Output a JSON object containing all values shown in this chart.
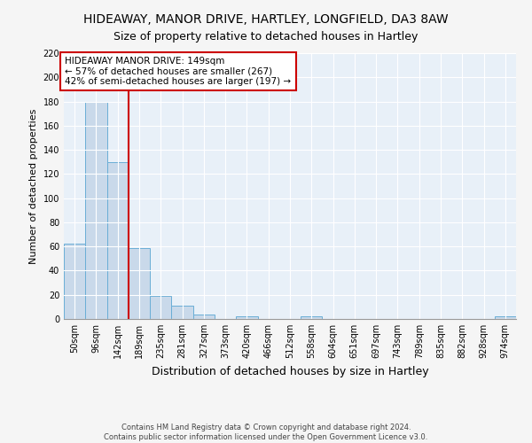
{
  "title": "HIDEAWAY, MANOR DRIVE, HARTLEY, LONGFIELD, DA3 8AW",
  "subtitle": "Size of property relative to detached houses in Hartley",
  "xlabel": "Distribution of detached houses by size in Hartley",
  "ylabel": "Number of detached properties",
  "footer_line1": "Contains HM Land Registry data © Crown copyright and database right 2024.",
  "footer_line2": "Contains public sector information licensed under the Open Government Licence v3.0.",
  "bin_labels": [
    "50sqm",
    "96sqm",
    "142sqm",
    "189sqm",
    "235sqm",
    "281sqm",
    "327sqm",
    "373sqm",
    "420sqm",
    "466sqm",
    "512sqm",
    "558sqm",
    "604sqm",
    "651sqm",
    "697sqm",
    "743sqm",
    "789sqm",
    "835sqm",
    "882sqm",
    "928sqm",
    "974sqm"
  ],
  "bar_values": [
    62,
    180,
    130,
    59,
    19,
    11,
    4,
    0,
    2,
    0,
    0,
    2,
    0,
    0,
    0,
    0,
    0,
    0,
    0,
    0,
    2
  ],
  "bar_color": "#c9d9ea",
  "bar_edge_color": "#6aaed6",
  "highlight_bar_index": 2,
  "highlight_line_color": "#cc0000",
  "annotation_box_text": "HIDEAWAY MANOR DRIVE: 149sqm\n← 57% of detached houses are smaller (267)\n42% of semi-detached houses are larger (197) →",
  "annotation_box_color": "#cc0000",
  "annotation_box_bg": "#ffffff",
  "ylim": [
    0,
    220
  ],
  "yticks": [
    0,
    20,
    40,
    60,
    80,
    100,
    120,
    140,
    160,
    180,
    200,
    220
  ],
  "figure_bg": "#f5f5f5",
  "plot_bg_color": "#e8f0f8",
  "title_fontsize": 10,
  "subtitle_fontsize": 9,
  "xlabel_fontsize": 9,
  "ylabel_fontsize": 8,
  "tick_fontsize": 7,
  "annotation_fontsize": 7.5,
  "footer_fontsize": 6
}
